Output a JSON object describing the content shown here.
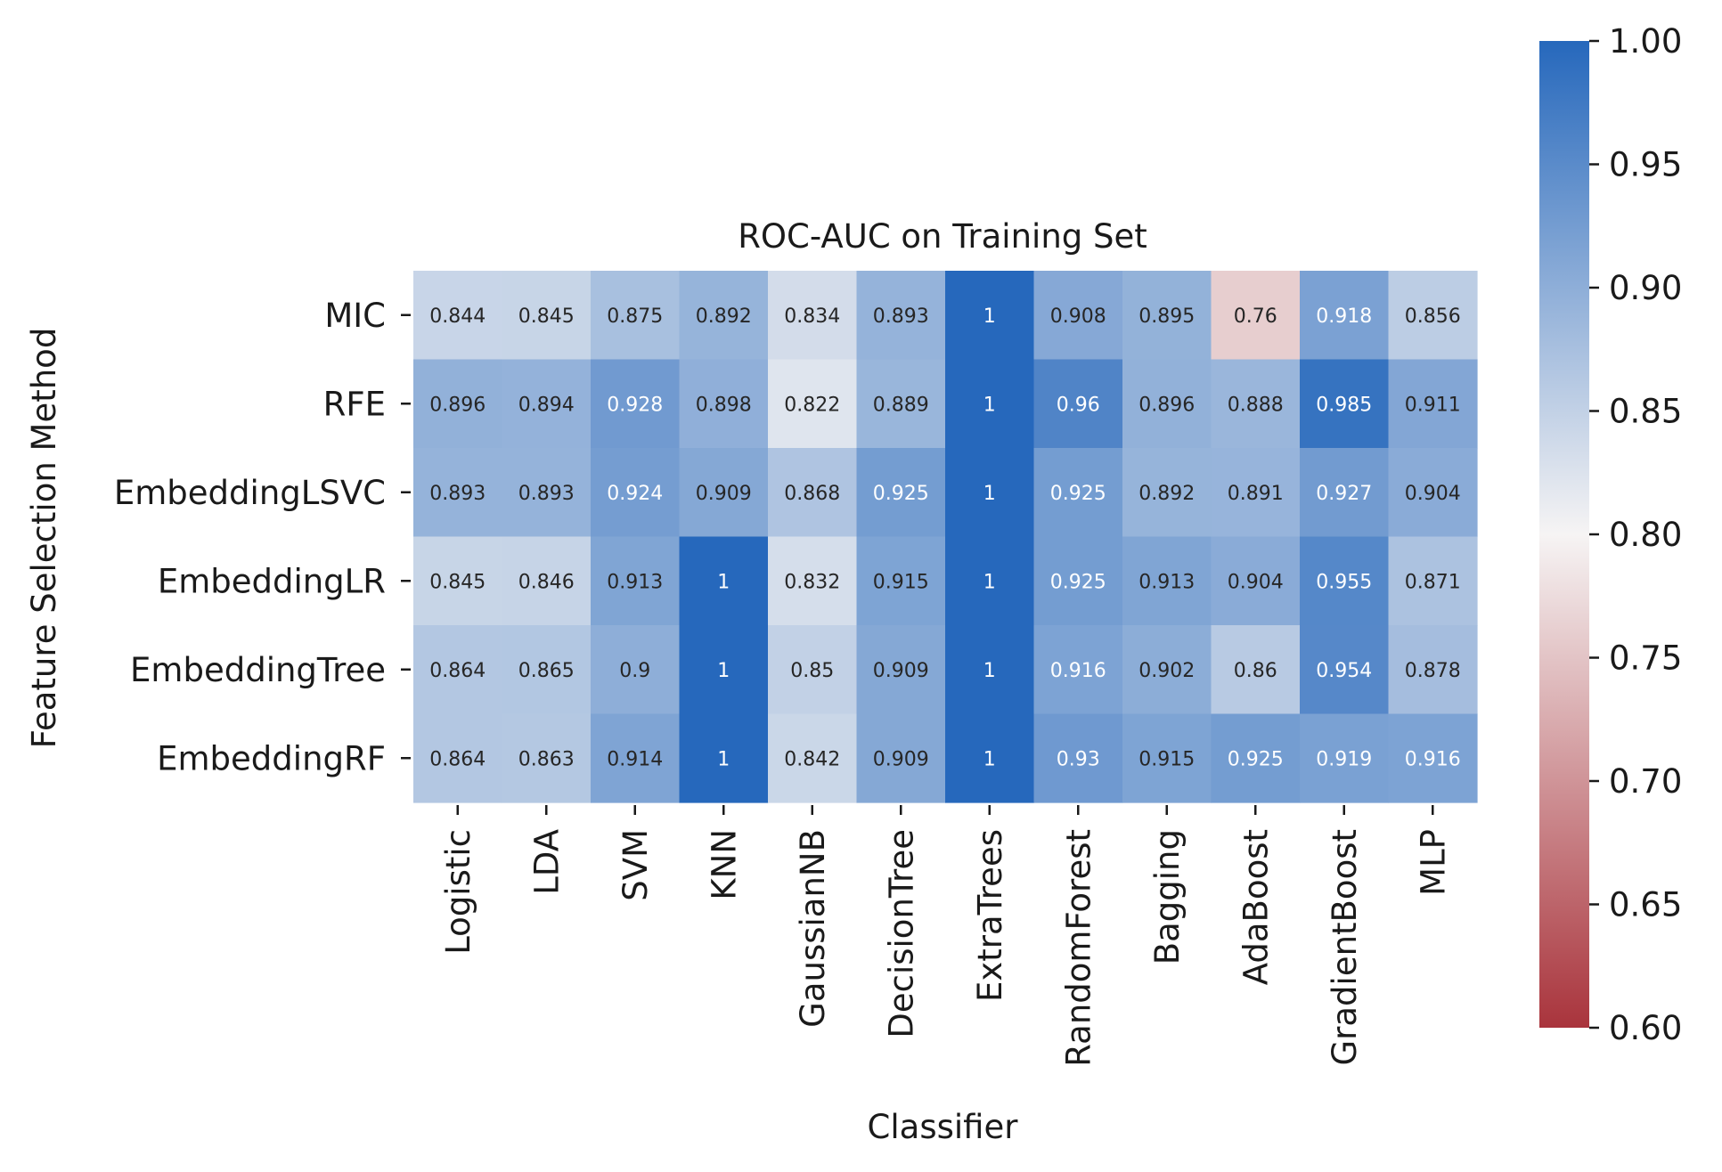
{
  "chart_data": {
    "type": "heatmap",
    "title": "ROC-AUC on Training Set",
    "xlabel": "Classifier",
    "ylabel": "Feature Selection Method",
    "x_categories": [
      "Logistic",
      "LDA",
      "SVM",
      "KNN",
      "GaussianNB",
      "DecisionTree",
      "ExtraTrees",
      "RandomForest",
      "Bagging",
      "AdaBoost",
      "GradientBoost",
      "MLP"
    ],
    "y_categories": [
      "MIC",
      "RFE",
      "EmbeddingLSVC",
      "EmbeddingLR",
      "EmbeddingTree",
      "EmbeddingRF"
    ],
    "values": [
      [
        0.844,
        0.845,
        0.875,
        0.892,
        0.834,
        0.893,
        1,
        0.908,
        0.895,
        0.76,
        0.918,
        0.856
      ],
      [
        0.896,
        0.894,
        0.928,
        0.898,
        0.822,
        0.889,
        1,
        0.96,
        0.896,
        0.888,
        0.985,
        0.911
      ],
      [
        0.893,
        0.893,
        0.924,
        0.909,
        0.868,
        0.925,
        1,
        0.925,
        0.892,
        0.891,
        0.927,
        0.904
      ],
      [
        0.845,
        0.846,
        0.913,
        1,
        0.832,
        0.915,
        1,
        0.925,
        0.913,
        0.904,
        0.955,
        0.871
      ],
      [
        0.864,
        0.865,
        0.9,
        1,
        0.85,
        0.909,
        1,
        0.916,
        0.902,
        0.86,
        0.954,
        0.878
      ],
      [
        0.864,
        0.863,
        0.914,
        1,
        0.842,
        0.909,
        1,
        0.93,
        0.915,
        0.925,
        0.919,
        0.916
      ]
    ],
    "colorbar": {
      "range": [
        0.6,
        1.0
      ],
      "center": 0.8,
      "ticks": [
        "0.60",
        "0.65",
        "0.70",
        "0.75",
        "0.80",
        "0.85",
        "0.90",
        "0.95",
        "1.00"
      ],
      "low_color": "#a9343c",
      "mid_color": "#f6f4f4",
      "high_color": "#2668bc"
    }
  }
}
